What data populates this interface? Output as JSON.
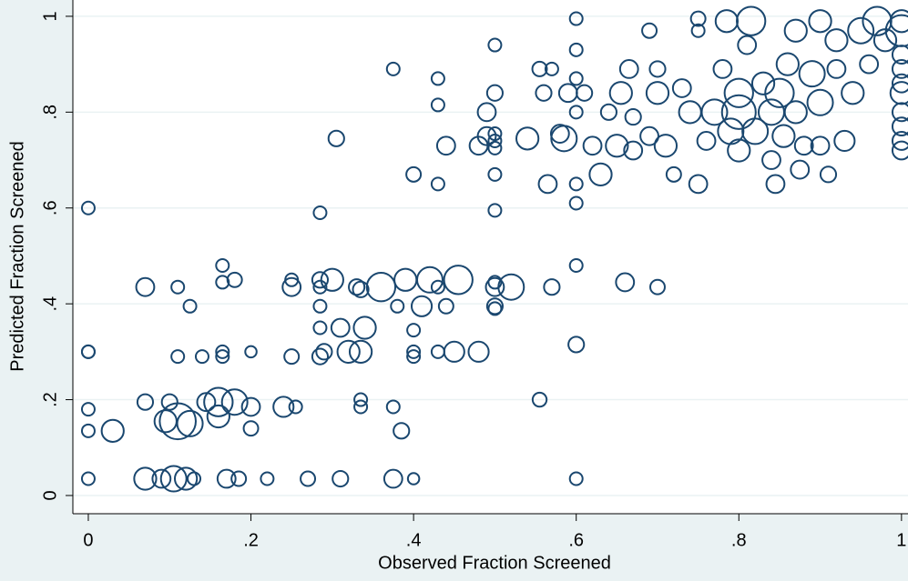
{
  "chart_data": {
    "type": "scatter",
    "xlabel": "Observed Fraction Screened",
    "ylabel": "Predicted Fraction Screened",
    "color": "#1a476f",
    "xlim": [
      -0.019,
      1.008
    ],
    "ylim": [
      -0.038,
      1.034
    ],
    "xticks": [
      0,
      {
        "value": 0.2,
        "label": ".2"
      },
      {
        "value": 0.4,
        "label": ".4"
      },
      {
        "value": 0.6,
        "label": ".6"
      },
      {
        "value": 0.8,
        "label": ".8"
      },
      1
    ],
    "yticks": [
      0,
      {
        "value": 0.2,
        "label": ".2"
      },
      {
        "value": 0.4,
        "label": ".4"
      },
      {
        "value": 0.6,
        "label": ".6"
      },
      {
        "value": 0.8,
        "label": ".8"
      },
      1
    ],
    "grid": true,
    "x": [
      0,
      0,
      0,
      0,
      0,
      0,
      0.03,
      0.07,
      0.07,
      0.07,
      0.09,
      0.095,
      0.1,
      0.105,
      0.11,
      0.11,
      0.11,
      0.12,
      0.125,
      0.125,
      0.13,
      0.14,
      0.145,
      0.16,
      0.16,
      0.165,
      0.165,
      0.165,
      0.165,
      0.17,
      0.18,
      0.18,
      0.185,
      0.2,
      0.2,
      0.2,
      0.22,
      0.24,
      0.25,
      0.25,
      0.25,
      0.255,
      0.27,
      0.285,
      0.285,
      0.285,
      0.285,
      0.285,
      0.285,
      0.29,
      0.3,
      0.305,
      0.31,
      0.31,
      0.32,
      0.33,
      0.335,
      0.335,
      0.335,
      0.335,
      0.34,
      0.36,
      0.375,
      0.375,
      0.38,
      0.375,
      0.385,
      0.39,
      0.4,
      0.4,
      0.4,
      0.4,
      0.4,
      0.41,
      0.42,
      0.43,
      0.43,
      0.43,
      0.43,
      0.43,
      0.44,
      0.44,
      0.45,
      0.455,
      0.48,
      0.48,
      0.49,
      0.49,
      0.5,
      0.5,
      0.5,
      0.5,
      0.5,
      0.5,
      0.5,
      0.5,
      0.5,
      0.5,
      0.5,
      0.52,
      0.555,
      0.54,
      0.555,
      0.56,
      0.565,
      0.57,
      0.57,
      0.58,
      0.585,
      0.59,
      0.6,
      0.6,
      0.6,
      0.6,
      0.6,
      0.6,
      0.6,
      0.6,
      0.6,
      0.61,
      0.62,
      0.63,
      0.64,
      0.65,
      0.655,
      0.66,
      0.665,
      0.67,
      0.67,
      0.69,
      0.69,
      0.7,
      0.7,
      0.7,
      0.71,
      0.72,
      0.73,
      0.74,
      0.75,
      0.75,
      0.75,
      0.76,
      0.77,
      0.78,
      0.785,
      0.79,
      0.8,
      0.8,
      0.8,
      0.81,
      0.815,
      0.82,
      0.83,
      0.84,
      0.84,
      0.845,
      0.85,
      0.855,
      0.86,
      0.87,
      0.87,
      0.875,
      0.88,
      0.89,
      0.9,
      0.9,
      0.9,
      0.91,
      0.92,
      0.92,
      0.93,
      0.94,
      0.95,
      0.96,
      0.97,
      0.98,
      1,
      1,
      1,
      1,
      1,
      1,
      1,
      1,
      1,
      1
    ],
    "values": [
      0.6,
      0.3,
      0.3,
      0.18,
      0.135,
      0.035,
      0.135,
      0.435,
      0.035,
      0.195,
      0.035,
      0.155,
      0.195,
      0.035,
      0.155,
      0.435,
      0.29,
      0.035,
      0.395,
      0.15,
      0.035,
      0.29,
      0.195,
      0.195,
      0.165,
      0.48,
      0.445,
      0.3,
      0.29,
      0.035,
      0.45,
      0.195,
      0.035,
      0.3,
      0.14,
      0.185,
      0.035,
      0.185,
      0.45,
      0.435,
      0.29,
      0.185,
      0.035,
      0.59,
      0.45,
      0.435,
      0.395,
      0.35,
      0.29,
      0.3,
      0.45,
      0.745,
      0.035,
      0.35,
      0.3,
      0.435,
      0.2,
      0.185,
      0.43,
      0.3,
      0.35,
      0.435,
      0.89,
      0.185,
      0.395,
      0.035,
      0.135,
      0.45,
      0.67,
      0.345,
      0.3,
      0.29,
      0.035,
      0.395,
      0.45,
      0.87,
      0.815,
      0.65,
      0.3,
      0.435,
      0.395,
      0.73,
      0.3,
      0.45,
      0.3,
      0.73,
      0.75,
      0.8,
      0.94,
      0.84,
      0.755,
      0.74,
      0.725,
      0.67,
      0.595,
      0.445,
      0.395,
      0.39,
      0.435,
      0.435,
      0.2,
      0.745,
      0.89,
      0.84,
      0.65,
      0.435,
      0.89,
      0.755,
      0.745,
      0.84,
      0.995,
      0.93,
      0.87,
      0.8,
      0.65,
      0.61,
      0.48,
      0.315,
      0.035,
      0.84,
      0.73,
      0.67,
      0.8,
      0.73,
      0.84,
      0.445,
      0.89,
      0.79,
      0.72,
      0.97,
      0.75,
      0.84,
      0.435,
      0.89,
      0.73,
      0.67,
      0.85,
      0.8,
      0.995,
      0.97,
      0.65,
      0.74,
      0.8,
      0.89,
      0.99,
      0.76,
      0.84,
      0.8,
      0.72,
      0.94,
      0.99,
      0.76,
      0.86,
      0.7,
      0.8,
      0.65,
      0.84,
      0.75,
      0.9,
      0.97,
      0.8,
      0.68,
      0.73,
      0.88,
      0.82,
      0.99,
      0.73,
      0.67,
      0.95,
      0.89,
      0.74,
      0.84,
      0.97,
      0.9,
      0.99,
      0.95,
      0.97,
      0.92,
      0.89,
      0.86,
      0.84,
      0.8,
      0.77,
      0.74,
      0.72,
      0.99
    ],
    "sizes": [
      1,
      1,
      1,
      1,
      1,
      1,
      3,
      2,
      3,
      1.5,
      2,
      3,
      1.5,
      4,
      8,
      1,
      1,
      3,
      1,
      4,
      1,
      1,
      2,
      5,
      3,
      1,
      1,
      1,
      1,
      2,
      1.3,
      4,
      1.3,
      0.8,
      1.3,
      2,
      1,
      2.5,
      1,
      2,
      1.3,
      1,
      1.3,
      1,
      1.5,
      1,
      1,
      1,
      1.5,
      1.5,
      3,
      1.5,
      1.5,
      2,
      3,
      1.5,
      1,
      1,
      1.5,
      3,
      3,
      5,
      1,
      1,
      1,
      2,
      1.5,
      3,
      1.3,
      1,
      1,
      1,
      0.8,
      2.5,
      4,
      1,
      1,
      1,
      1,
      1,
      1.3,
      2,
      2.5,
      5,
      2.5,
      2,
      2,
      2,
      1,
      1.5,
      1,
      1,
      1,
      1,
      1,
      1,
      1.5,
      1,
      2,
      4,
      1.2,
      3,
      1.3,
      1.5,
      2,
      1.5,
      1,
      2,
      4,
      2,
      1,
      1,
      1,
      1,
      1,
      1,
      1,
      1.5,
      1,
      1.5,
      2,
      3,
      1.5,
      3,
      3,
      2,
      2,
      1.5,
      2,
      1.3,
      2,
      3,
      1.3,
      1.5,
      3,
      1.3,
      2,
      3,
      1.3,
      1,
      2,
      2,
      4,
      2,
      3,
      4,
      5,
      7,
      3,
      2,
      5,
      4,
      3,
      2,
      4,
      2,
      5,
      3,
      3,
      3,
      3,
      2,
      2,
      4,
      4,
      3,
      2,
      1.5,
      3,
      2,
      2.5,
      3,
      4,
      2,
      5,
      3,
      6,
      2,
      2,
      2,
      3,
      2,
      2,
      2,
      2,
      3
    ]
  }
}
